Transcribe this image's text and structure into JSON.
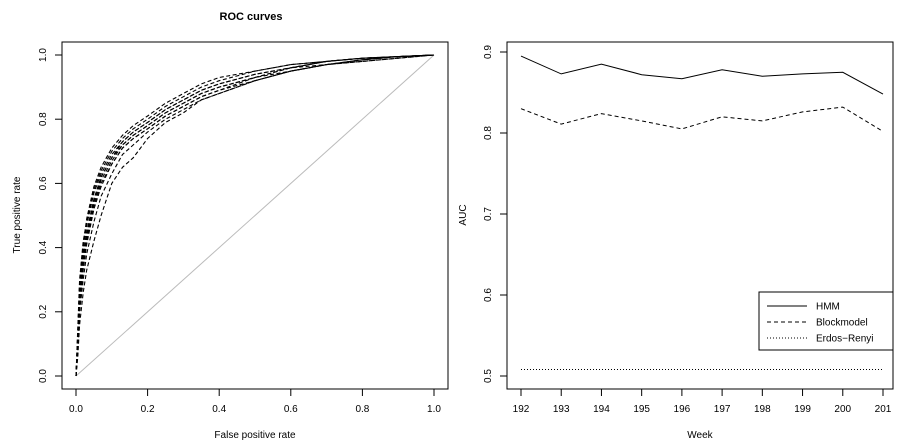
{
  "chart_data": [
    {
      "type": "line",
      "title": "ROC curves",
      "xlabel": "False positive rate",
      "ylabel": "True positive rate",
      "xlim": [
        0,
        1
      ],
      "ylim": [
        0,
        1
      ],
      "xticks": [
        "0.0",
        "0.2",
        "0.4",
        "0.6",
        "0.8",
        "1.0"
      ],
      "yticks": [
        "0.0",
        "0.2",
        "0.4",
        "0.6",
        "0.8",
        "1.0"
      ],
      "grid": false,
      "diagonal_color": "#bbbbbb",
      "series": [
        {
          "x": [
            0,
            0.005,
            0.01,
            0.02,
            0.03,
            0.05,
            0.07,
            0.1,
            0.13,
            0.16,
            0.2,
            0.25,
            0.3,
            0.35,
            0.4,
            0.5,
            0.6,
            0.7,
            0.8,
            0.9,
            1.0
          ],
          "y": [
            0,
            0.12,
            0.26,
            0.38,
            0.45,
            0.55,
            0.62,
            0.68,
            0.72,
            0.75,
            0.78,
            0.82,
            0.85,
            0.88,
            0.9,
            0.93,
            0.96,
            0.98,
            0.99,
            0.995,
            1.0
          ]
        },
        {
          "x": [
            0,
            0.005,
            0.01,
            0.02,
            0.03,
            0.05,
            0.07,
            0.1,
            0.13,
            0.16,
            0.2,
            0.25,
            0.3,
            0.35,
            0.4,
            0.5,
            0.6,
            0.7,
            0.8,
            0.9,
            1.0
          ],
          "y": [
            0,
            0.1,
            0.22,
            0.33,
            0.41,
            0.52,
            0.59,
            0.66,
            0.71,
            0.74,
            0.77,
            0.81,
            0.84,
            0.87,
            0.89,
            0.92,
            0.95,
            0.97,
            0.985,
            0.995,
            1.0
          ]
        },
        {
          "x": [
            0,
            0.005,
            0.01,
            0.02,
            0.03,
            0.05,
            0.07,
            0.1,
            0.13,
            0.16,
            0.2,
            0.25,
            0.3,
            0.35,
            0.4,
            0.5,
            0.6,
            0.7,
            0.8,
            0.9,
            1.0
          ],
          "y": [
            0,
            0.15,
            0.3,
            0.42,
            0.48,
            0.58,
            0.64,
            0.7,
            0.74,
            0.77,
            0.8,
            0.84,
            0.87,
            0.9,
            0.92,
            0.95,
            0.97,
            0.98,
            0.99,
            0.995,
            1.0
          ]
        },
        {
          "x": [
            0,
            0.005,
            0.01,
            0.02,
            0.03,
            0.05,
            0.07,
            0.1,
            0.13,
            0.16,
            0.2,
            0.25,
            0.3,
            0.35,
            0.4,
            0.5,
            0.6,
            0.7,
            0.8,
            0.9,
            1.0
          ],
          "y": [
            0,
            0.08,
            0.2,
            0.3,
            0.38,
            0.48,
            0.56,
            0.63,
            0.69,
            0.72,
            0.76,
            0.8,
            0.83,
            0.86,
            0.88,
            0.92,
            0.95,
            0.97,
            0.98,
            0.99,
            1.0
          ]
        },
        {
          "x": [
            0,
            0.005,
            0.01,
            0.02,
            0.03,
            0.05,
            0.07,
            0.1,
            0.13,
            0.16,
            0.2,
            0.25,
            0.3,
            0.35,
            0.4,
            0.5,
            0.6,
            0.7,
            0.8,
            0.9,
            1.0
          ],
          "y": [
            0,
            0.06,
            0.16,
            0.26,
            0.33,
            0.42,
            0.5,
            0.6,
            0.65,
            0.68,
            0.74,
            0.79,
            0.82,
            0.86,
            0.88,
            0.92,
            0.95,
            0.97,
            0.98,
            0.99,
            1.0
          ]
        },
        {
          "x": [
            0,
            0.005,
            0.01,
            0.02,
            0.03,
            0.05,
            0.07,
            0.1,
            0.13,
            0.16,
            0.2,
            0.25,
            0.3,
            0.35,
            0.4,
            0.5,
            0.6,
            0.7,
            0.8,
            0.9,
            1.0
          ],
          "y": [
            0,
            0.13,
            0.28,
            0.4,
            0.47,
            0.57,
            0.63,
            0.69,
            0.73,
            0.76,
            0.79,
            0.83,
            0.86,
            0.89,
            0.91,
            0.94,
            0.96,
            0.98,
            0.99,
            0.995,
            1.0
          ]
        },
        {
          "x": [
            0,
            0.005,
            0.01,
            0.02,
            0.03,
            0.05,
            0.07,
            0.1,
            0.13,
            0.16,
            0.2,
            0.25,
            0.3,
            0.35,
            0.4,
            0.5,
            0.6,
            0.7,
            0.8,
            0.9,
            1.0
          ],
          "y": [
            0,
            0.11,
            0.24,
            0.36,
            0.43,
            0.54,
            0.61,
            0.67,
            0.72,
            0.75,
            0.78,
            0.82,
            0.85,
            0.88,
            0.9,
            0.93,
            0.96,
            0.97,
            0.985,
            0.995,
            1.0
          ]
        },
        {
          "x": [
            0,
            0.005,
            0.01,
            0.02,
            0.03,
            0.05,
            0.07,
            0.1,
            0.13,
            0.16,
            0.2,
            0.25,
            0.3,
            0.35,
            0.4,
            0.5,
            0.6,
            0.7,
            0.8,
            0.9,
            1.0
          ],
          "y": [
            0,
            0.14,
            0.29,
            0.41,
            0.49,
            0.59,
            0.65,
            0.71,
            0.75,
            0.78,
            0.81,
            0.85,
            0.88,
            0.91,
            0.93,
            0.95,
            0.97,
            0.98,
            0.99,
            0.995,
            1.0
          ]
        },
        {
          "x": [
            0,
            0.005,
            0.01,
            0.02,
            0.03,
            0.05,
            0.07,
            0.1,
            0.13,
            0.16,
            0.2,
            0.25,
            0.3,
            0.35,
            0.4,
            0.5,
            0.6,
            0.7,
            0.8,
            0.9,
            1.0
          ],
          "y": [
            0,
            0.09,
            0.21,
            0.34,
            0.42,
            0.53,
            0.6,
            0.66,
            0.71,
            0.74,
            0.77,
            0.81,
            0.84,
            0.87,
            0.89,
            0.93,
            0.95,
            0.97,
            0.985,
            0.995,
            1.0
          ]
        },
        {
          "x": [
            0,
            0.005,
            0.01,
            0.02,
            0.03,
            0.05,
            0.07,
            0.1,
            0.13,
            0.16,
            0.2,
            0.25,
            0.3,
            0.35,
            0.4,
            0.5,
            0.6,
            0.7,
            0.8,
            0.9,
            1.0
          ],
          "y": [
            0,
            0.12,
            0.25,
            0.37,
            0.44,
            0.55,
            0.62,
            0.68,
            0.73,
            0.76,
            0.79,
            0.83,
            0.86,
            0.89,
            0.91,
            0.94,
            0.96,
            0.98,
            0.99,
            0.995,
            1.0
          ]
        }
      ]
    },
    {
      "type": "line",
      "title": "",
      "xlabel": "Week",
      "ylabel": "AUC",
      "xlim": [
        192,
        201
      ],
      "ylim": [
        0.5,
        0.9
      ],
      "xticks": [
        "192",
        "193",
        "194",
        "195",
        "196",
        "197",
        "198",
        "199",
        "200",
        "201"
      ],
      "yticks": [
        "0.5",
        "0.6",
        "0.7",
        "0.8",
        "0.9"
      ],
      "grid": false,
      "legend_position": "bottom-right",
      "x": [
        192,
        193,
        194,
        195,
        196,
        197,
        198,
        199,
        200,
        201
      ],
      "series": [
        {
          "name": "HMM",
          "style": "solid",
          "values": [
            0.895,
            0.873,
            0.885,
            0.872,
            0.867,
            0.878,
            0.87,
            0.873,
            0.875,
            0.848
          ]
        },
        {
          "name": "Blockmodel",
          "style": "dashed",
          "values": [
            0.83,
            0.811,
            0.824,
            0.815,
            0.805,
            0.82,
            0.815,
            0.826,
            0.832,
            0.802
          ]
        },
        {
          "name": "Erdos−Renyi",
          "style": "dotted",
          "values": [
            0.508,
            0.508,
            0.508,
            0.508,
            0.508,
            0.508,
            0.508,
            0.508,
            0.508,
            0.508
          ]
        }
      ]
    }
  ]
}
